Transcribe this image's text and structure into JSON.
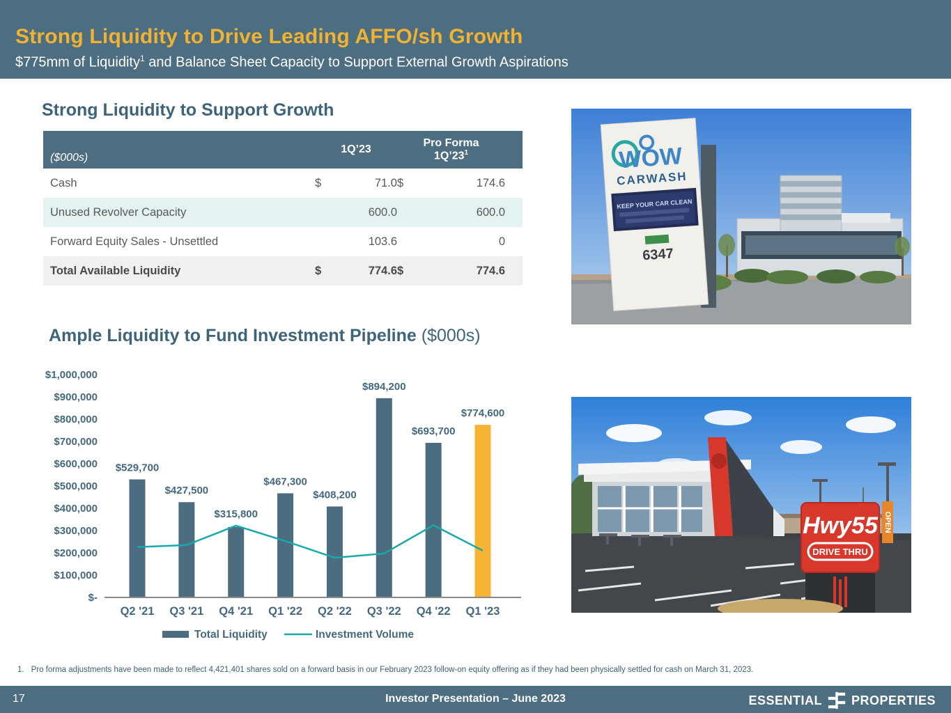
{
  "header": {
    "title": "Strong Liquidity to Drive Leading AFFO/sh Growth",
    "subtitle_prefix": "$775mm of Liquidity",
    "subtitle_sup": "1",
    "subtitle_suffix": " and Balance Sheet Capacity to Support External Growth Aspirations"
  },
  "section_liquidity": {
    "heading": "Strong Liquidity to Support Growth",
    "table": {
      "unit_label": "($000s)",
      "col1_header": "1Q’23",
      "col2_header_line1": "Pro Forma",
      "col2_header_line2": "1Q’23",
      "col2_header_sup": "1",
      "rows": [
        {
          "label": "Cash",
          "cur1": "$",
          "val1": "71.0",
          "cur2": "$",
          "val2": "174.6"
        },
        {
          "label": "Unused Revolver Capacity",
          "cur1": "",
          "val1": "600.0",
          "cur2": "",
          "val2": "600.0"
        },
        {
          "label": "Forward Equity Sales - Unsettled",
          "cur1": "",
          "val1": "103.6",
          "cur2": "",
          "val2": "0"
        },
        {
          "label": "Total Available Liquidity",
          "cur1": "$",
          "val1": "774.6",
          "cur2": "$",
          "val2": "774.6"
        }
      ]
    }
  },
  "chart_data": {
    "type": "bar",
    "title": "Ample Liquidity to Fund Investment Pipeline",
    "unit": "($000s)",
    "categories": [
      "Q2 '21",
      "Q3 '21",
      "Q4 '21",
      "Q1 '22",
      "Q2 '22",
      "Q3 '22",
      "Q4 '22",
      "Q1 '23"
    ],
    "series": [
      {
        "name": "Total Liquidity",
        "type": "bar",
        "values": [
          529700,
          427500,
          315800,
          467300,
          408200,
          894200,
          693700,
          774600
        ],
        "labels": [
          "$529,700",
          "$427,500",
          "$315,800",
          "$467,300",
          "$408,200",
          "$894,200",
          "$693,700",
          "$774,600"
        ]
      },
      {
        "name": "Investment Volume",
        "type": "line",
        "values": [
          226000,
          235000,
          322000,
          253000,
          178000,
          197000,
          324000,
          210000
        ]
      }
    ],
    "highlight_index": 7,
    "ylim": [
      0,
      1000000
    ],
    "yticks": [
      {
        "label": "$1,000,000",
        "value": 1000000
      },
      {
        "label": "$900,000",
        "value": 900000
      },
      {
        "label": "$800,000",
        "value": 800000
      },
      {
        "label": "$700,000",
        "value": 700000
      },
      {
        "label": "$600,000",
        "value": 600000
      },
      {
        "label": "$500,000",
        "value": 500000
      },
      {
        "label": "$400,000",
        "value": 400000
      },
      {
        "label": "$300,000",
        "value": 300000
      },
      {
        "label": "$200,000",
        "value": 200000
      },
      {
        "label": "$100,000",
        "value": 100000
      },
      {
        "label": "$-",
        "value": 0
      }
    ],
    "legend_position": "bottom",
    "grid": false,
    "colors": {
      "bar": "#4C6C80",
      "highlight": "#F7B334",
      "line": "#17A9AC",
      "label_text": "#44687E",
      "axis": "#8a8a8a"
    }
  },
  "photos": {
    "carwash": {
      "alt": "WOW Carwash exterior with monument sign",
      "logo_top": "WOW",
      "logo_bottom": "CARWASH",
      "led_line": "KEEP YOUR CAR CLEAN",
      "address": "6347"
    },
    "hwy55": {
      "alt": "Hwy 55 drive-thru restaurant and sign",
      "sign_title": "Hwy55",
      "sign_sub": "DRIVE THRU",
      "flag": "OPEN"
    }
  },
  "footnote": {
    "num": "1.",
    "text": "Pro forma adjustments have been made to reflect 4,421,401 shares sold on a forward basis in our February 2023 follow-on equity offering as if they had been physically settled for cash on March 31, 2023."
  },
  "footer": {
    "page": "17",
    "center": "Investor Presentation – June 2023",
    "logo_left": "ESSENTIAL",
    "logo_right": "PROPERTIES"
  }
}
